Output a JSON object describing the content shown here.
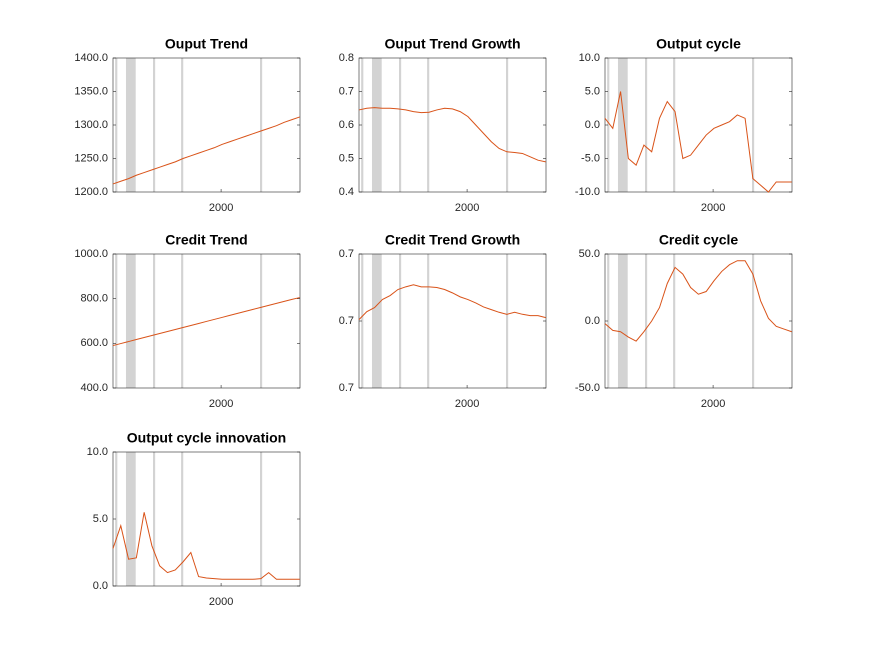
{
  "chart_data": [
    {
      "type": "line",
      "title": "Ouput Trend",
      "x": [
        1990,
        1990.72,
        1991.44,
        1992.16,
        1992.88,
        1993.6,
        1994.32,
        1995.04,
        1995.76,
        1996.48,
        1997.2,
        1997.92,
        1998.64,
        1999.36,
        2000.08,
        2000.8,
        2001.52,
        2002.24,
        2002.96,
        2003.68,
        2004.4,
        2005.12,
        2005.84,
        2006.56,
        2007.28
      ],
      "values": [
        1212,
        1216,
        1220,
        1225,
        1229,
        1233,
        1237,
        1241,
        1245,
        1250,
        1254,
        1258,
        1262,
        1266,
        1271,
        1275,
        1279,
        1283,
        1287,
        1291,
        1295,
        1299,
        1304,
        1308,
        1312
      ],
      "color": "#d95319",
      "shaded": [
        [
          1990.2,
          1990.4
        ],
        [
          1991.2,
          1992.1
        ],
        [
          1993.7,
          1993.9
        ],
        [
          1996.3,
          1996.5
        ],
        [
          2003.6,
          2003.8
        ]
      ],
      "shade_color": "#d3d3d3",
      "xlim": [
        1990,
        2007.3
      ],
      "xticks": [
        2000
      ],
      "ylim": [
        1200,
        1400
      ],
      "yticks": [
        {
          "value": 1200,
          "label": "1200.0"
        },
        {
          "value": 1250,
          "label": "1250.0"
        },
        {
          "value": 1300,
          "label": "1300.0"
        },
        {
          "value": 1350,
          "label": "1350.0"
        },
        {
          "value": 1400,
          "label": "1400.0"
        }
      ]
    },
    {
      "type": "line",
      "title": "Ouput Trend Growth",
      "x": [
        1990,
        1990.72,
        1991.44,
        1992.16,
        1992.88,
        1993.6,
        1994.32,
        1995.04,
        1995.76,
        1996.48,
        1997.2,
        1997.92,
        1998.64,
        1999.36,
        2000.08,
        2000.8,
        2001.52,
        2002.24,
        2002.96,
        2003.68,
        2004.4,
        2005.12,
        2005.84,
        2006.56,
        2007.28
      ],
      "values": [
        0.645,
        0.65,
        0.652,
        0.65,
        0.65,
        0.648,
        0.645,
        0.64,
        0.637,
        0.638,
        0.645,
        0.65,
        0.648,
        0.64,
        0.625,
        0.6,
        0.575,
        0.55,
        0.53,
        0.52,
        0.518,
        0.515,
        0.505,
        0.495,
        0.49
      ],
      "color": "#d95319",
      "shaded": [
        [
          1990.2,
          1990.4
        ],
        [
          1991.2,
          1992.1
        ],
        [
          1993.7,
          1993.9
        ],
        [
          1996.3,
          1996.5
        ],
        [
          2003.6,
          2003.8
        ]
      ],
      "shade_color": "#d3d3d3",
      "xlim": [
        1990,
        2007.3
      ],
      "xticks": [
        2000
      ],
      "ylim": [
        0.4,
        0.8
      ],
      "yticks": [
        0.4,
        0.5,
        0.6,
        0.7,
        0.8
      ]
    },
    {
      "type": "line",
      "title": "Output cycle",
      "x": [
        1990,
        1990.72,
        1991.44,
        1992.16,
        1992.88,
        1993.6,
        1994.32,
        1995.04,
        1995.76,
        1996.48,
        1997.2,
        1997.92,
        1998.64,
        1999.36,
        2000.08,
        2000.8,
        2001.52,
        2002.24,
        2002.96,
        2003.68,
        2004.4,
        2005.12,
        2005.84,
        2006.56,
        2007.28
      ],
      "values": [
        1,
        -0.5,
        5,
        -5,
        -6,
        -3,
        -4,
        1,
        3.5,
        2,
        -5,
        -4.5,
        -3,
        -1.5,
        -0.5,
        0,
        0.5,
        1.5,
        1,
        -8,
        -9,
        -10,
        -8.5,
        -8.5,
        -8.5
      ],
      "color": "#d95319",
      "shaded": [
        [
          1990.2,
          1990.4
        ],
        [
          1991.2,
          1992.1
        ],
        [
          1993.7,
          1993.9
        ],
        [
          1996.3,
          1996.5
        ],
        [
          2003.6,
          2003.8
        ]
      ],
      "shade_color": "#d3d3d3",
      "xlim": [
        1990,
        2007.3
      ],
      "xticks": [
        2000
      ],
      "ylim": [
        -10,
        10
      ],
      "yticks": [
        {
          "value": -10,
          "label": "-10.0"
        },
        {
          "value": -5,
          "label": "-5.0"
        },
        {
          "value": 0,
          "label": "0.0"
        },
        {
          "value": 5,
          "label": "5.0"
        },
        {
          "value": 10,
          "label": "10.0"
        }
      ]
    },
    {
      "type": "line",
      "title": "Credit Trend",
      "x": [
        1990,
        1990.72,
        1991.44,
        1992.16,
        1992.88,
        1993.6,
        1994.32,
        1995.04,
        1995.76,
        1996.48,
        1997.2,
        1997.92,
        1998.64,
        1999.36,
        2000.08,
        2000.8,
        2001.52,
        2002.24,
        2002.96,
        2003.68,
        2004.4,
        2005.12,
        2005.84,
        2006.56,
        2007.28
      ],
      "values": [
        590,
        599,
        608,
        617,
        626,
        635,
        644,
        653,
        662,
        671,
        680,
        689,
        698,
        707,
        716,
        725,
        734,
        743,
        752,
        761,
        770,
        779,
        788,
        797,
        805
      ],
      "color": "#d95319",
      "shaded": [
        [
          1990.2,
          1990.4
        ],
        [
          1991.2,
          1992.1
        ],
        [
          1993.7,
          1993.9
        ],
        [
          1996.3,
          1996.5
        ],
        [
          2003.6,
          2003.8
        ]
      ],
      "shade_color": "#d3d3d3",
      "xlim": [
        1990,
        2007.3
      ],
      "xticks": [
        2000
      ],
      "ylim": [
        400,
        1000
      ],
      "yticks": [
        {
          "value": 400,
          "label": "400.0"
        },
        {
          "value": 600,
          "label": "600.0"
        },
        {
          "value": 800,
          "label": "800.0"
        },
        {
          "value": 1000,
          "label": "1000.0"
        }
      ]
    },
    {
      "type": "line",
      "title": "Credit Trend Growth",
      "x": [
        1990,
        1990.72,
        1991.44,
        1992.16,
        1992.88,
        1993.6,
        1994.32,
        1995.04,
        1995.76,
        1996.48,
        1997.2,
        1997.92,
        1998.64,
        1999.36,
        2000.08,
        2000.8,
        2001.52,
        2002.24,
        2002.96,
        2003.68,
        2004.4,
        2005.12,
        2005.84,
        2006.56,
        2007.28
      ],
      "values": [
        0.7002,
        0.7014,
        0.702,
        0.7032,
        0.7038,
        0.7047,
        0.7051,
        0.7054,
        0.7051,
        0.7051,
        0.705,
        0.7047,
        0.7042,
        0.7036,
        0.7032,
        0.7027,
        0.7021,
        0.7017,
        0.7013,
        0.701,
        0.7013,
        0.701,
        0.7008,
        0.7008,
        0.7005
      ],
      "color": "#d95319",
      "shaded": [
        [
          1990.2,
          1990.4
        ],
        [
          1991.2,
          1992.1
        ],
        [
          1993.7,
          1993.9
        ],
        [
          1996.3,
          1996.5
        ],
        [
          2003.6,
          2003.8
        ]
      ],
      "shade_color": "#d3d3d3",
      "xlim": [
        1990,
        2007.3
      ],
      "xticks": [
        2000
      ],
      "ylim": [
        0.69,
        0.71
      ],
      "yticks": [
        {
          "value": 0.69,
          "label": "0.7"
        },
        0.7,
        {
          "value": 0.71,
          "label": "0.7"
        }
      ]
    },
    {
      "type": "line",
      "title": "Credit cycle",
      "x": [
        1990,
        1990.72,
        1991.44,
        1992.16,
        1992.88,
        1993.6,
        1994.32,
        1995.04,
        1995.76,
        1996.48,
        1997.2,
        1997.92,
        1998.64,
        1999.36,
        2000.08,
        2000.8,
        2001.52,
        2002.24,
        2002.96,
        2003.68,
        2004.4,
        2005.12,
        2005.84,
        2006.56,
        2007.28
      ],
      "values": [
        -2,
        -7,
        -8,
        -12,
        -15,
        -8,
        0,
        10,
        28,
        40,
        35,
        25,
        20,
        22,
        30,
        37,
        42,
        45,
        45,
        35,
        15,
        2,
        -4,
        -6,
        -8
      ],
      "color": "#d95319",
      "shaded": [
        [
          1990.2,
          1990.4
        ],
        [
          1991.2,
          1992.1
        ],
        [
          1993.7,
          1993.9
        ],
        [
          1996.3,
          1996.5
        ],
        [
          2003.6,
          2003.8
        ]
      ],
      "shade_color": "#d3d3d3",
      "xlim": [
        1990,
        2007.3
      ],
      "xticks": [
        2000
      ],
      "ylim": [
        -50,
        50
      ],
      "yticks": [
        {
          "value": -50,
          "label": "-50.0"
        },
        {
          "value": 0,
          "label": "0.0"
        },
        {
          "value": 50,
          "label": "50.0"
        }
      ]
    },
    {
      "type": "line",
      "title": "Output cycle innovation",
      "x": [
        1990,
        1990.72,
        1991.44,
        1992.16,
        1992.88,
        1993.6,
        1994.32,
        1995.04,
        1995.76,
        1996.48,
        1997.2,
        1997.92,
        1998.64,
        1999.36,
        2000.08,
        2000.8,
        2001.52,
        2002.24,
        2002.96,
        2003.68,
        2004.4,
        2005.12,
        2005.84,
        2006.56,
        2007.28
      ],
      "values": [
        2.8,
        4.5,
        2,
        2.1,
        5.5,
        3,
        1.5,
        1,
        1.2,
        1.8,
        2.5,
        0.7,
        0.6,
        0.55,
        0.5,
        0.5,
        0.5,
        0.5,
        0.5,
        0.55,
        1,
        0.5,
        0.5,
        0.5,
        0.5
      ],
      "color": "#d95319",
      "shaded": [
        [
          1990.2,
          1990.4
        ],
        [
          1991.2,
          1992.1
        ],
        [
          1993.7,
          1993.9
        ],
        [
          1996.3,
          1996.5
        ],
        [
          2003.6,
          2003.8
        ]
      ],
      "shade_color": "#d3d3d3",
      "xlim": [
        1990,
        2007.3
      ],
      "xticks": [
        2000
      ],
      "ylim": [
        0,
        10
      ],
      "yticks": [
        {
          "value": 0,
          "label": "0.0"
        },
        {
          "value": 5,
          "label": "5.0"
        },
        {
          "value": 10,
          "label": "10.0"
        }
      ]
    }
  ]
}
